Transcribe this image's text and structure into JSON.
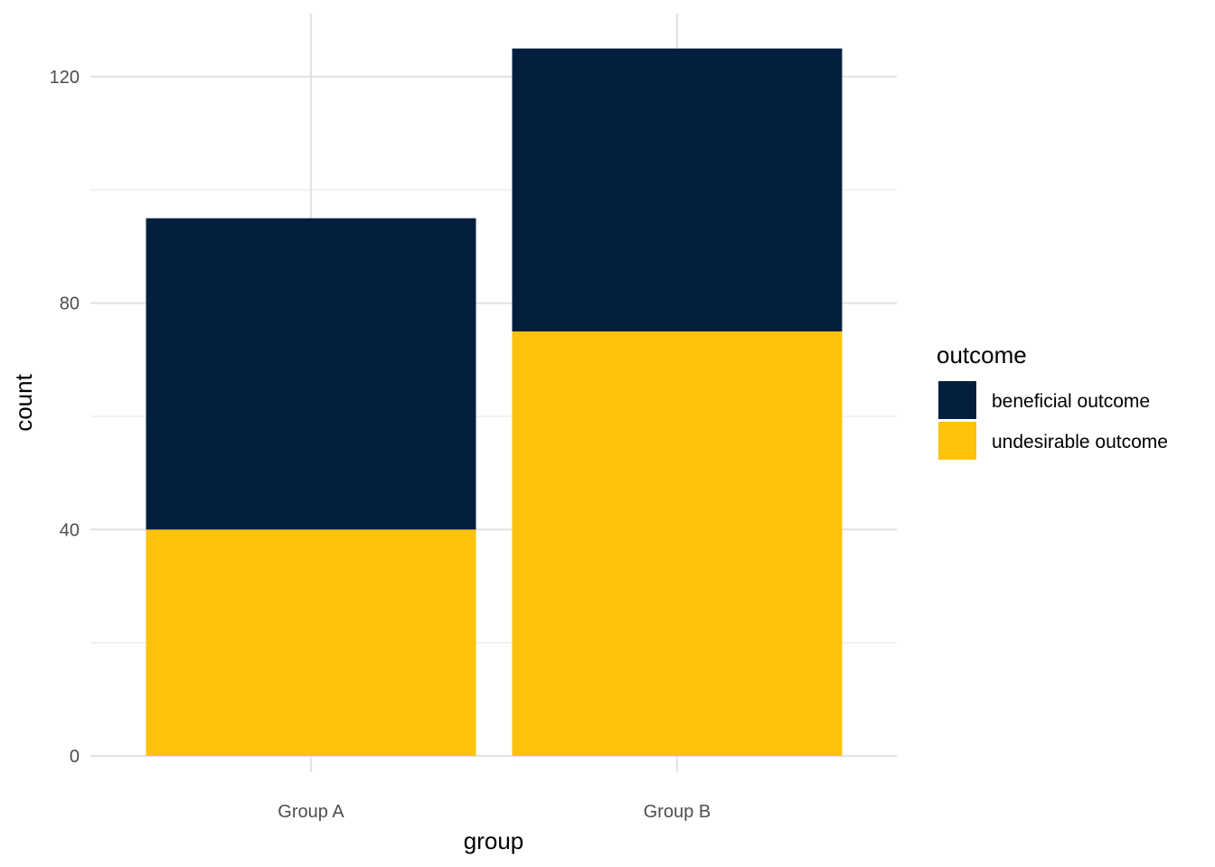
{
  "chart_data": {
    "type": "bar",
    "stacked": true,
    "categories": [
      "Group A",
      "Group B"
    ],
    "series": [
      {
        "name": "undesirable outcome",
        "values": [
          40,
          75
        ],
        "color": "#FDC20C"
      },
      {
        "name": "beneficial outcome",
        "values": [
          55,
          50
        ],
        "color": "#041F3E"
      }
    ],
    "xlabel": "group",
    "ylabel": "count",
    "ylim": [
      0,
      125
    ],
    "yticks": [
      0,
      40,
      80,
      120
    ],
    "grid": true,
    "legend": {
      "title": "outcome",
      "position": "right",
      "entries": [
        "beneficial outcome",
        "undesirable outcome"
      ]
    }
  }
}
